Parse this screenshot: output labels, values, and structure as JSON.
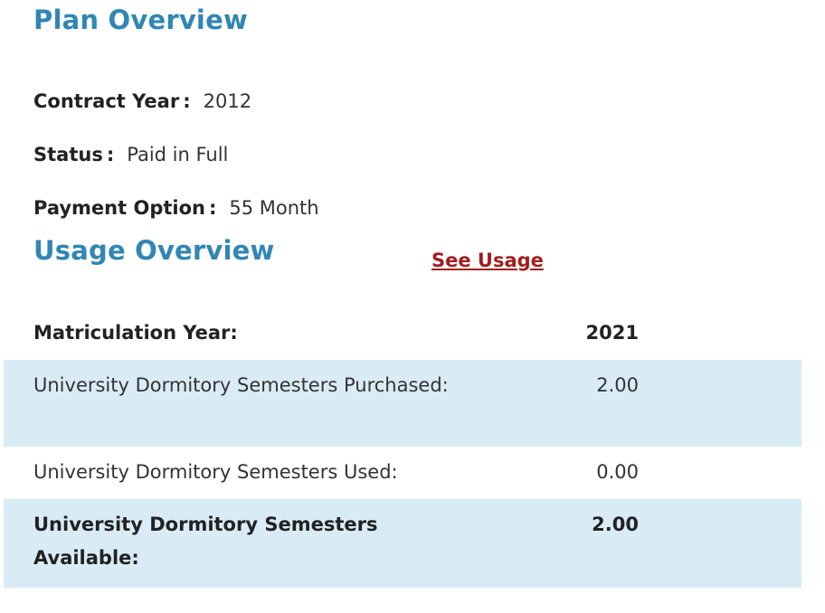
{
  "plan_overview": {
    "title": "Plan Overview",
    "fields": [
      {
        "label": "Contract Year",
        "separator": ":",
        "value": "2012"
      },
      {
        "label": "Status",
        "separator": ":",
        "value": "Paid in Full"
      },
      {
        "label": "Payment Option",
        "separator": ":",
        "value": "55 Month"
      }
    ]
  },
  "usage_overview": {
    "title": "Usage Overview",
    "see_usage_link": "See Usage",
    "table": {
      "header": {
        "label": "Matriculation Year:",
        "value": "2021"
      },
      "rows": [
        {
          "label": "University Dormitory Semesters Purchased:",
          "value": "2.00"
        },
        {
          "label": "University Dormitory Semesters Used:",
          "value": "0.00"
        },
        {
          "label": "University Dormitory Semesters Available:",
          "value": "2.00"
        }
      ]
    }
  },
  "colors": {
    "heading": "#3186b4",
    "link": "#a31f1f",
    "row_highlight": "#d9ecf6"
  }
}
